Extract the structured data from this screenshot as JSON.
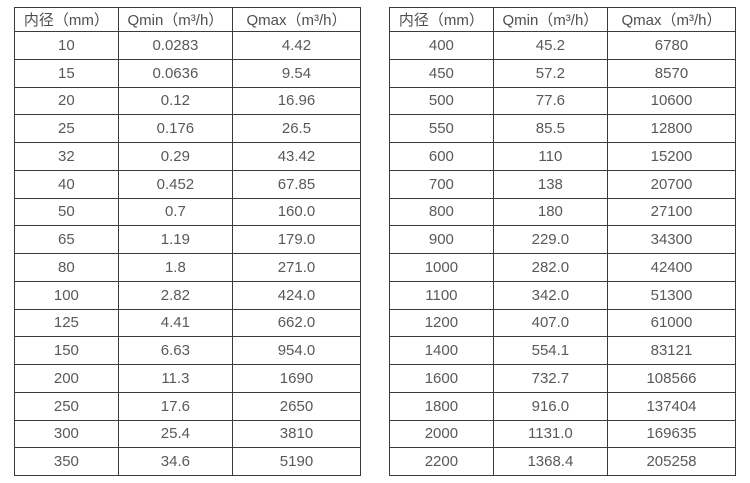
{
  "tables": [
    {
      "name": "flow-table-small-diameters",
      "headers": [
        "内径（mm）",
        "Qmin（m³/h）",
        "Qmax（m³/h）"
      ],
      "rows": [
        [
          "10",
          "0.0283",
          "4.42"
        ],
        [
          "15",
          "0.0636",
          "9.54"
        ],
        [
          "20",
          "0.12",
          "16.96"
        ],
        [
          "25",
          "0.176",
          "26.5"
        ],
        [
          "32",
          "0.29",
          "43.42"
        ],
        [
          "40",
          "0.452",
          "67.85"
        ],
        [
          "50",
          "0.7",
          "160.0"
        ],
        [
          "65",
          "1.19",
          "179.0"
        ],
        [
          "80",
          "1.8",
          "271.0"
        ],
        [
          "100",
          "2.82",
          "424.0"
        ],
        [
          "125",
          "4.41",
          "662.0"
        ],
        [
          "150",
          "6.63",
          "954.0"
        ],
        [
          "200",
          "11.3",
          "1690"
        ],
        [
          "250",
          "17.6",
          "2650"
        ],
        [
          "300",
          "25.4",
          "3810"
        ],
        [
          "350",
          "34.6",
          "5190"
        ]
      ]
    },
    {
      "name": "flow-table-large-diameters",
      "headers": [
        "内径（mm）",
        "Qmin（m³/h）",
        "Qmax（m³/h）"
      ],
      "rows": [
        [
          "400",
          "45.2",
          "6780"
        ],
        [
          "450",
          "57.2",
          "8570"
        ],
        [
          "500",
          "77.6",
          "10600"
        ],
        [
          "550",
          "85.5",
          "12800"
        ],
        [
          "600",
          "110",
          "15200"
        ],
        [
          "700",
          "138",
          "20700"
        ],
        [
          "800",
          "180",
          "27100"
        ],
        [
          "900",
          "229.0",
          "34300"
        ],
        [
          "1000",
          "282.0",
          "42400"
        ],
        [
          "1100",
          "342.0",
          "51300"
        ],
        [
          "1200",
          "407.0",
          "61000"
        ],
        [
          "1400",
          "554.1",
          "83121"
        ],
        [
          "1600",
          "732.7",
          "108566"
        ],
        [
          "1800",
          "916.0",
          "137404"
        ],
        [
          "2000",
          "1131.0",
          "169635"
        ],
        [
          "2200",
          "1368.4",
          "205258"
        ]
      ]
    }
  ],
  "colors": {
    "border": "#3b3b3b",
    "text": "#595959",
    "background": "#ffffff"
  },
  "cell_names": [
    "cell-diameter",
    "cell-qmin",
    "cell-qmax"
  ],
  "header_names": [
    "header-diameter",
    "header-qmin",
    "header-qmax"
  ]
}
